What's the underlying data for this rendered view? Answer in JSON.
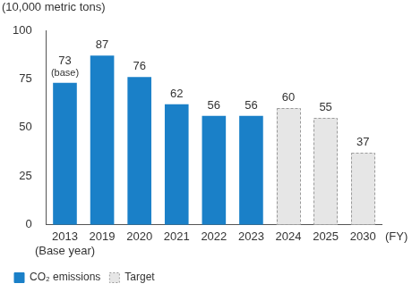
{
  "chart_data": {
    "type": "bar",
    "ylabel": "(10,000 metric tons)",
    "xlabel": "(FY)",
    "categories": [
      "2013",
      "2019",
      "2020",
      "2021",
      "2022",
      "2023",
      "2024",
      "2025",
      "2030"
    ],
    "category_sublabels": [
      "(Base year)",
      null,
      null,
      null,
      null,
      null,
      null,
      null,
      null
    ],
    "series": [
      {
        "name": "CO₂ emissions",
        "color": "#1a80c8",
        "line_style": "solid",
        "values": [
          73,
          87,
          76,
          62,
          56,
          56,
          null,
          null,
          null
        ]
      },
      {
        "name": "Target",
        "color": "#e6e6e6",
        "line_style": "dashed",
        "values": [
          null,
          null,
          null,
          null,
          null,
          null,
          60,
          55,
          37
        ]
      }
    ],
    "annotations": [
      {
        "text": "(base)",
        "category": "2013"
      }
    ],
    "ylim": [
      0,
      100
    ],
    "yticks": [
      0,
      25,
      50,
      75,
      100
    ],
    "grid": false,
    "data_labels": true,
    "legend": "lower left"
  }
}
